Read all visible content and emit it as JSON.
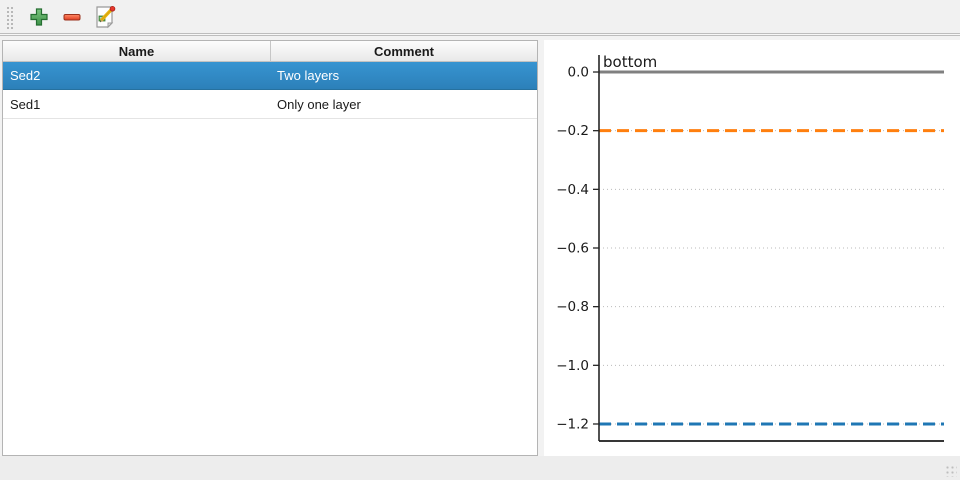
{
  "toolbar": {
    "buttons": [
      {
        "name": "add",
        "icon": "plus-icon"
      },
      {
        "name": "remove",
        "icon": "minus-icon"
      },
      {
        "name": "edit",
        "icon": "edit-icon"
      }
    ]
  },
  "table": {
    "columns": [
      "Name",
      "Comment"
    ],
    "rows": [
      {
        "name": "Sed2",
        "comment": "Two layers",
        "selected": true
      },
      {
        "name": "Sed1",
        "comment": "Only one layer",
        "selected": false
      }
    ],
    "selection_color": "#308cc6"
  },
  "chart_data": {
    "type": "line",
    "title": "",
    "xlabel": "",
    "ylabel": "",
    "ylim": [
      -1.258,
      0.058
    ],
    "grid": true,
    "grid_color": "#bbbbbb",
    "yticks": {
      "values": [
        0.0,
        -0.2,
        -0.4,
        -0.6,
        -0.8,
        -1.0,
        -1.2
      ],
      "labels": [
        "0.0",
        "−0.2",
        "−0.4",
        "−0.6",
        "−0.8",
        "−1.0",
        "−1.2"
      ]
    },
    "lines": [
      {
        "y": 0.0,
        "color": "#808080",
        "style": "solid",
        "label": "bottom"
      },
      {
        "y": -0.2,
        "color": "#ff7f0e",
        "style": "dashed",
        "label": ""
      },
      {
        "y": -1.2,
        "color": "#1f77b4",
        "style": "dashed",
        "label": ""
      }
    ],
    "annotations": [
      {
        "text": "bottom",
        "y": 0.0
      }
    ]
  }
}
